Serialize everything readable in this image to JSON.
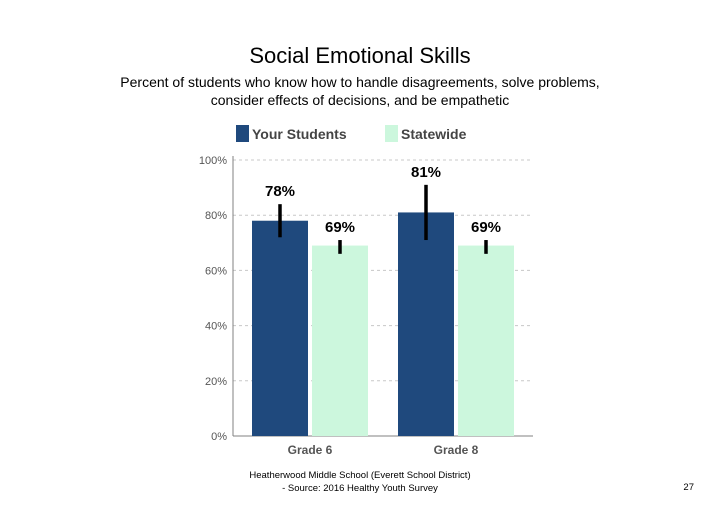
{
  "slide": {
    "title": "Social Emotional Skills",
    "subtitle_lines": [
      "Percent of students who know how to handle disagreements, solve problems,",
      "consider effects of decisions, and be empathetic"
    ],
    "footer_lines": [
      "Heatherwood Middle School (Everett School District)",
      "- Source: 2016 Healthy Youth Survey"
    ],
    "page_number": "27"
  },
  "chart_data": {
    "type": "bar",
    "categories": [
      "Grade 6",
      "Grade 8"
    ],
    "series": [
      {
        "name": "Your Students",
        "color": "#1f497d",
        "values": [
          78,
          81
        ],
        "labels": [
          "78%",
          "81%"
        ],
        "error_low": [
          72,
          71
        ],
        "error_high": [
          84,
          91
        ]
      },
      {
        "name": "Statewide",
        "color": "#ccf7dd",
        "values": [
          69,
          69
        ],
        "labels": [
          "69%",
          "69%"
        ],
        "error_low": [
          66,
          66
        ],
        "error_high": [
          71,
          71
        ]
      }
    ],
    "ylim": [
      0,
      100
    ],
    "yticks": [
      0,
      20,
      40,
      60,
      80,
      100
    ],
    "ytick_labels": [
      "0%",
      "20%",
      "40%",
      "60%",
      "80%",
      "100%"
    ],
    "grid": true,
    "legend": "top"
  }
}
